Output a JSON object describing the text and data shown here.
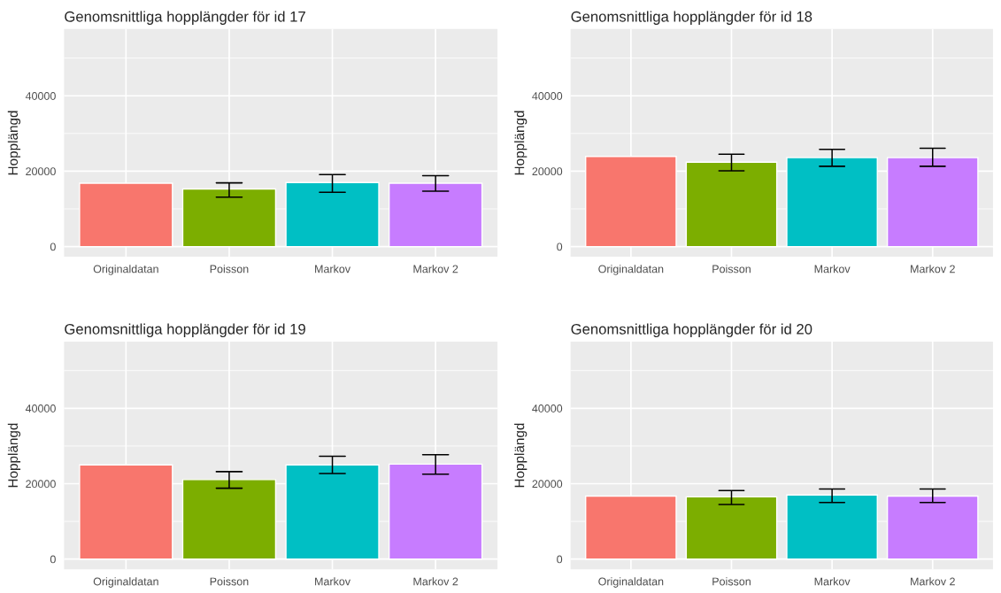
{
  "chart_data": [
    {
      "type": "bar",
      "title": "Genomsnittliga hopplängder för id 17",
      "ylabel": "Hopplängd",
      "categories": [
        "Originaldatan",
        "Poisson",
        "Markov",
        "Markov 2"
      ],
      "colors": [
        "#f8766d",
        "#7cae00",
        "#00bfc4",
        "#c77cff"
      ],
      "values": [
        16800,
        15300,
        17000,
        16800
      ],
      "errors": [
        null,
        [
          13100,
          16900
        ],
        [
          14400,
          19100
        ],
        [
          14700,
          18800
        ]
      ],
      "ylim": [
        -2700,
        57700
      ],
      "yticks": [
        0,
        20000,
        40000
      ],
      "grid": true
    },
    {
      "type": "bar",
      "title": "Genomsnittliga hopplängder för id 18",
      "ylabel": "Hopplängd",
      "categories": [
        "Originaldatan",
        "Poisson",
        "Markov",
        "Markov 2"
      ],
      "colors": [
        "#f8766d",
        "#7cae00",
        "#00bfc4",
        "#c77cff"
      ],
      "values": [
        23900,
        22400,
        23600,
        23600
      ],
      "errors": [
        null,
        [
          20100,
          24500
        ],
        [
          21300,
          25800
        ],
        [
          21300,
          26100
        ]
      ],
      "ylim": [
        -2700,
        57700
      ],
      "yticks": [
        0,
        20000,
        40000
      ],
      "grid": true
    },
    {
      "type": "bar",
      "title": "Genomsnittliga hopplängder för id 19",
      "ylabel": "Hopplängd",
      "categories": [
        "Originaldatan",
        "Poisson",
        "Markov",
        "Markov 2"
      ],
      "colors": [
        "#f8766d",
        "#7cae00",
        "#00bfc4",
        "#c77cff"
      ],
      "values": [
        25000,
        21100,
        25000,
        25200
      ],
      "errors": [
        null,
        [
          18800,
          23200
        ],
        [
          22700,
          27300
        ],
        [
          22500,
          27700
        ]
      ],
      "ylim": [
        -2700,
        57700
      ],
      "yticks": [
        0,
        20000,
        40000
      ],
      "grid": true
    },
    {
      "type": "bar",
      "title": "Genomsnittliga hopplängder för id 20",
      "ylabel": "Hopplängd",
      "categories": [
        "Originaldatan",
        "Poisson",
        "Markov",
        "Markov 2"
      ],
      "colors": [
        "#f8766d",
        "#7cae00",
        "#00bfc4",
        "#c77cff"
      ],
      "values": [
        16700,
        16500,
        17000,
        16700
      ],
      "errors": [
        null,
        [
          14500,
          18200
        ],
        [
          15000,
          18600
        ],
        [
          15000,
          18600
        ]
      ],
      "ylim": [
        -2700,
        57700
      ],
      "yticks": [
        0,
        20000,
        40000
      ],
      "grid": true
    }
  ]
}
